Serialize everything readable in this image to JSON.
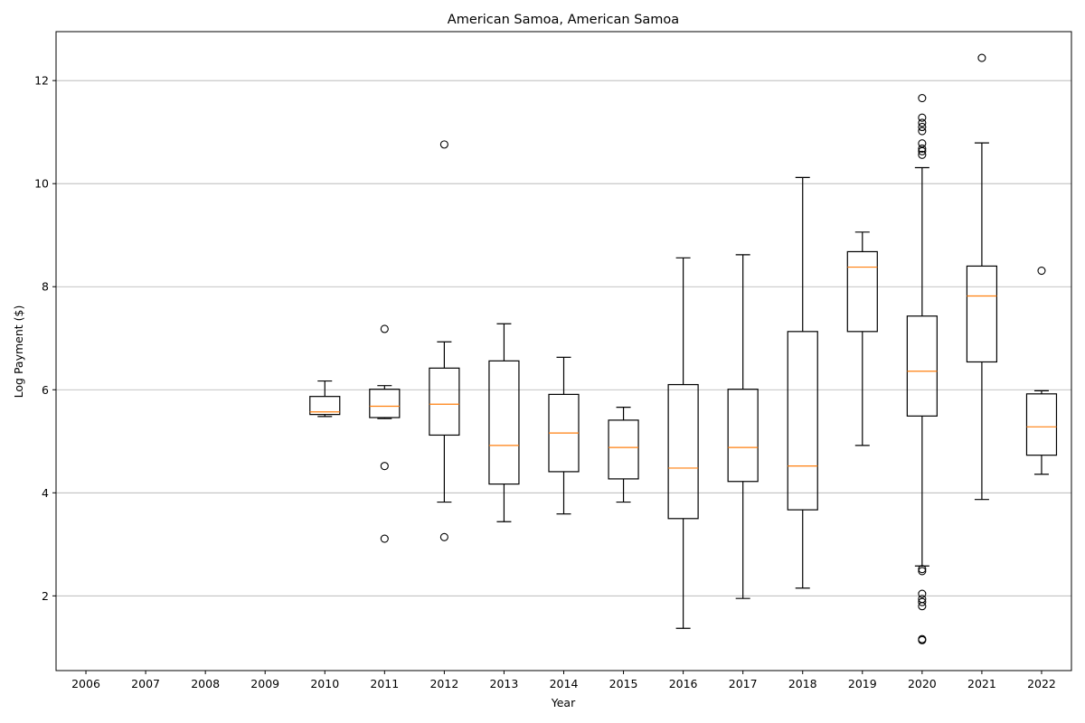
{
  "chart_data": {
    "type": "box",
    "title": "American Samoa, American Samoa",
    "xlabel": "Year",
    "ylabel": "Log Payment ($)",
    "ylim": [
      0.55,
      12.95
    ],
    "yticks": [
      2,
      4,
      6,
      8,
      10,
      12
    ],
    "grid": "horizontal",
    "categories": [
      "2006",
      "2007",
      "2008",
      "2009",
      "2010",
      "2011",
      "2012",
      "2013",
      "2014",
      "2015",
      "2016",
      "2017",
      "2018",
      "2019",
      "2020",
      "2021",
      "2022"
    ],
    "boxes": [
      {
        "year": "2010",
        "whisker_low": 5.48,
        "q1": 5.52,
        "median": 5.57,
        "q3": 5.87,
        "whisker_high": 6.17,
        "outliers": []
      },
      {
        "year": "2011",
        "whisker_low": 5.44,
        "q1": 5.46,
        "median": 5.68,
        "q3": 6.01,
        "whisker_high": 6.08,
        "outliers": [
          7.18,
          4.52,
          3.11
        ]
      },
      {
        "year": "2012",
        "whisker_low": 3.82,
        "q1": 5.12,
        "median": 5.72,
        "q3": 6.42,
        "whisker_high": 6.93,
        "outliers": [
          10.76,
          3.14
        ]
      },
      {
        "year": "2013",
        "whisker_low": 3.44,
        "q1": 4.17,
        "median": 4.92,
        "q3": 6.56,
        "whisker_high": 7.28,
        "outliers": []
      },
      {
        "year": "2014",
        "whisker_low": 3.59,
        "q1": 4.41,
        "median": 5.16,
        "q3": 5.91,
        "whisker_high": 6.63,
        "outliers": []
      },
      {
        "year": "2015",
        "whisker_low": 3.82,
        "q1": 4.27,
        "median": 4.88,
        "q3": 5.41,
        "whisker_high": 5.66,
        "outliers": []
      },
      {
        "year": "2016",
        "whisker_low": 1.37,
        "q1": 3.5,
        "median": 4.48,
        "q3": 6.1,
        "whisker_high": 8.56,
        "outliers": []
      },
      {
        "year": "2017",
        "whisker_low": 1.95,
        "q1": 4.22,
        "median": 4.88,
        "q3": 6.01,
        "whisker_high": 8.62,
        "outliers": []
      },
      {
        "year": "2018",
        "whisker_low": 2.15,
        "q1": 3.67,
        "median": 4.52,
        "q3": 7.13,
        "whisker_high": 10.12,
        "outliers": []
      },
      {
        "year": "2019",
        "whisker_low": 4.92,
        "q1": 7.13,
        "median": 8.38,
        "q3": 8.68,
        "whisker_high": 9.06,
        "outliers": []
      },
      {
        "year": "2020",
        "whisker_low": 2.58,
        "q1": 5.49,
        "median": 6.36,
        "q3": 7.43,
        "whisker_high": 10.31,
        "outliers": [
          11.66,
          11.28,
          11.18,
          11.1,
          11.02,
          10.78,
          10.68,
          10.63,
          10.56,
          2.52,
          2.48,
          2.04,
          1.94,
          1.88,
          1.8,
          1.16,
          1.14
        ]
      },
      {
        "year": "2021",
        "whisker_low": 3.87,
        "q1": 6.54,
        "median": 7.82,
        "q3": 8.4,
        "whisker_high": 10.79,
        "outliers": [
          12.44
        ]
      },
      {
        "year": "2022",
        "whisker_low": 4.36,
        "q1": 4.73,
        "median": 5.28,
        "q3": 5.92,
        "whisker_high": 5.98,
        "outliers": [
          8.31
        ]
      }
    ],
    "colors": {
      "box": "#000000",
      "median": "#ff7f0e",
      "grid": "#b0b0b0"
    }
  }
}
